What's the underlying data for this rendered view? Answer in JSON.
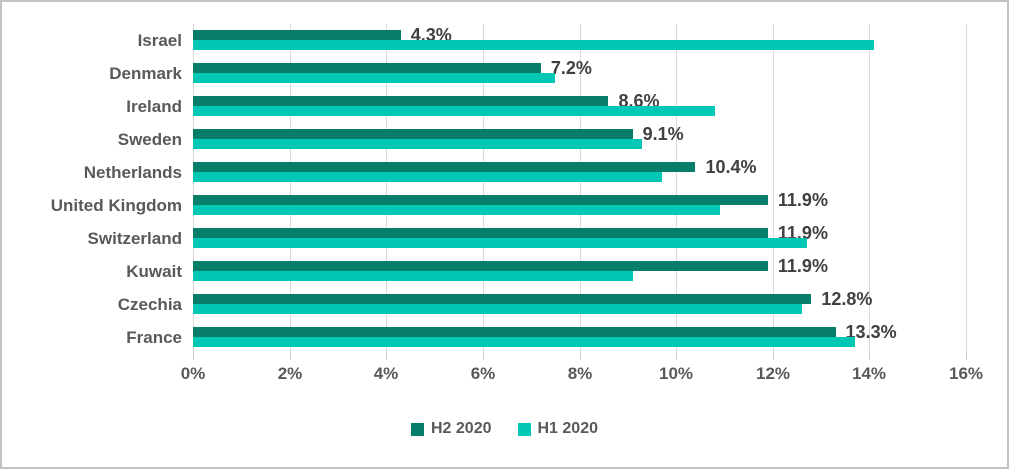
{
  "chart_data": {
    "type": "bar",
    "orientation": "horizontal",
    "title": "",
    "categories": [
      "Israel",
      "Denmark",
      "Ireland",
      "Sweden",
      "Netherlands",
      "United Kingdom",
      "Switzerland",
      "Kuwait",
      "Czechia",
      "France"
    ],
    "series": [
      {
        "name": "H2 2020",
        "color": "#077E6A",
        "values": [
          4.3,
          7.2,
          8.6,
          9.1,
          10.4,
          11.9,
          11.9,
          11.9,
          12.8,
          13.3
        ],
        "data_labels": [
          "4.3%",
          "7.2%",
          "8.6%",
          "9.1%",
          "10.4%",
          "11.9%",
          "11.9%",
          "11.9%",
          "12.8%",
          "13.3%"
        ]
      },
      {
        "name": "H1 2020",
        "color": "#01C8B5",
        "values": [
          14.1,
          7.5,
          10.8,
          9.3,
          9.7,
          10.9,
          12.7,
          9.1,
          12.6,
          13.7
        ],
        "data_labels": []
      }
    ],
    "x_axis": {
      "min": 0,
      "max": 16,
      "step": 2,
      "tick_labels": [
        "0%",
        "2%",
        "4%",
        "6%",
        "8%",
        "10%",
        "12%",
        "14%",
        "16%"
      ]
    },
    "legend": {
      "position": "bottom",
      "entries": [
        {
          "label": "H2 2020",
          "color": "#077E6A"
        },
        {
          "label": "H1 2020",
          "color": "#01C8B5"
        }
      ]
    },
    "gridlines": true,
    "grid_color": "#d9d9d9",
    "tick_color": "#c9c9c9",
    "category_label_color": "#595959",
    "axis_label_color": "#595959",
    "data_label_color": "#404040",
    "background_color": "#ffffff",
    "border_color": "#c2c2c2"
  }
}
